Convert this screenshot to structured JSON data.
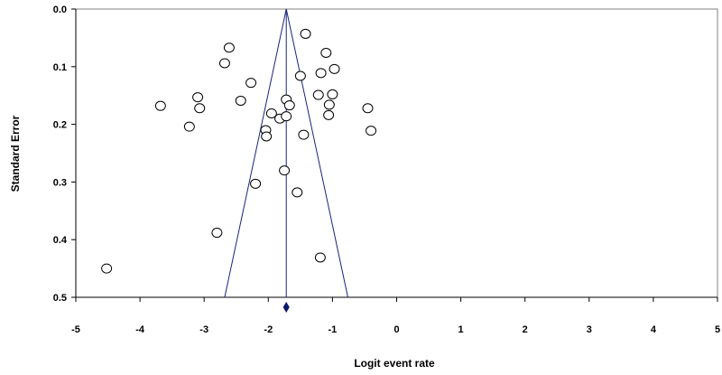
{
  "chart_data": {
    "type": "scatter",
    "title": "",
    "xlabel": "Logit event rate",
    "ylabel": "Standard Error",
    "xlim": [
      -5,
      5
    ],
    "ylim": [
      0,
      0.5
    ],
    "y_inverted": true,
    "grid": false,
    "x_ticks": [
      -5,
      -4,
      -3,
      -2,
      -1,
      0,
      1,
      2,
      3,
      4,
      5
    ],
    "y_ticks": [
      0.0,
      0.1,
      0.2,
      0.3,
      0.4,
      0.5
    ],
    "x_tick_labels": [
      "-5",
      "-4",
      "-3",
      "-2",
      "-1",
      "0",
      "1",
      "2",
      "3",
      "4",
      "5"
    ],
    "y_tick_labels": [
      "0.0",
      "0.1",
      "0.2",
      "0.3",
      "0.4",
      "0.5"
    ],
    "pooled_estimate": -1.72,
    "funnel_limits_at_max_se": [
      -2.68,
      -0.76
    ],
    "points": [
      {
        "x": -4.52,
        "y": 0.45
      },
      {
        "x": -3.68,
        "y": 0.168
      },
      {
        "x": -3.23,
        "y": 0.204
      },
      {
        "x": -3.1,
        "y": 0.153
      },
      {
        "x": -3.07,
        "y": 0.172
      },
      {
        "x": -2.8,
        "y": 0.388
      },
      {
        "x": -2.68,
        "y": 0.094
      },
      {
        "x": -2.61,
        "y": 0.067
      },
      {
        "x": -2.43,
        "y": 0.159
      },
      {
        "x": -2.27,
        "y": 0.128
      },
      {
        "x": -2.2,
        "y": 0.303
      },
      {
        "x": -2.04,
        "y": 0.21
      },
      {
        "x": -2.03,
        "y": 0.221
      },
      {
        "x": -1.95,
        "y": 0.181
      },
      {
        "x": -1.82,
        "y": 0.19
      },
      {
        "x": -1.75,
        "y": 0.28
      },
      {
        "x": -1.72,
        "y": 0.157
      },
      {
        "x": -1.72,
        "y": 0.186
      },
      {
        "x": -1.67,
        "y": 0.167
      },
      {
        "x": -1.55,
        "y": 0.318
      },
      {
        "x": -1.5,
        "y": 0.116
      },
      {
        "x": -1.45,
        "y": 0.218
      },
      {
        "x": -1.42,
        "y": 0.043
      },
      {
        "x": -1.22,
        "y": 0.149
      },
      {
        "x": -1.18,
        "y": 0.111
      },
      {
        "x": -1.19,
        "y": 0.431
      },
      {
        "x": -1.1,
        "y": 0.076
      },
      {
        "x": -1.06,
        "y": 0.184
      },
      {
        "x": -1.05,
        "y": 0.166
      },
      {
        "x": -1.0,
        "y": 0.148
      },
      {
        "x": -0.97,
        "y": 0.104
      },
      {
        "x": -0.45,
        "y": 0.172
      },
      {
        "x": -0.4,
        "y": 0.211
      }
    ]
  }
}
